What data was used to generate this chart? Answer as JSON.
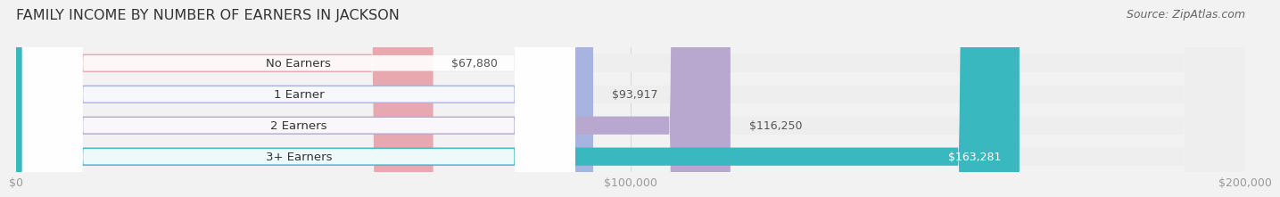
{
  "title": "FAMILY INCOME BY NUMBER OF EARNERS IN JACKSON",
  "source": "Source: ZipAtlas.com",
  "categories": [
    "No Earners",
    "1 Earner",
    "2 Earners",
    "3+ Earners"
  ],
  "values": [
    67880,
    93917,
    116250,
    163281
  ],
  "labels": [
    "$67,880",
    "$93,917",
    "$116,250",
    "$163,281"
  ],
  "bar_colors": [
    "#e8a8b0",
    "#a8b4e0",
    "#b8a8d0",
    "#3ab8c0"
  ],
  "bar_bg_colors": [
    "#eeeeee",
    "#eeeeee",
    "#eeeeee",
    "#eeeeee"
  ],
  "label_text_colors": [
    "#555555",
    "#555555",
    "#555555",
    "#ffffff"
  ],
  "xmax": 200000,
  "xticklabels": [
    "$0",
    "$100,000",
    "$200,000"
  ],
  "xtick_vals": [
    0,
    100000,
    200000
  ],
  "title_fontsize": 11.5,
  "source_fontsize": 9,
  "label_fontsize": 9,
  "category_fontsize": 9.5,
  "tick_fontsize": 9,
  "bg_color": "#f2f2f2",
  "title_color": "#333333",
  "source_color": "#666666",
  "tick_color": "#999999"
}
